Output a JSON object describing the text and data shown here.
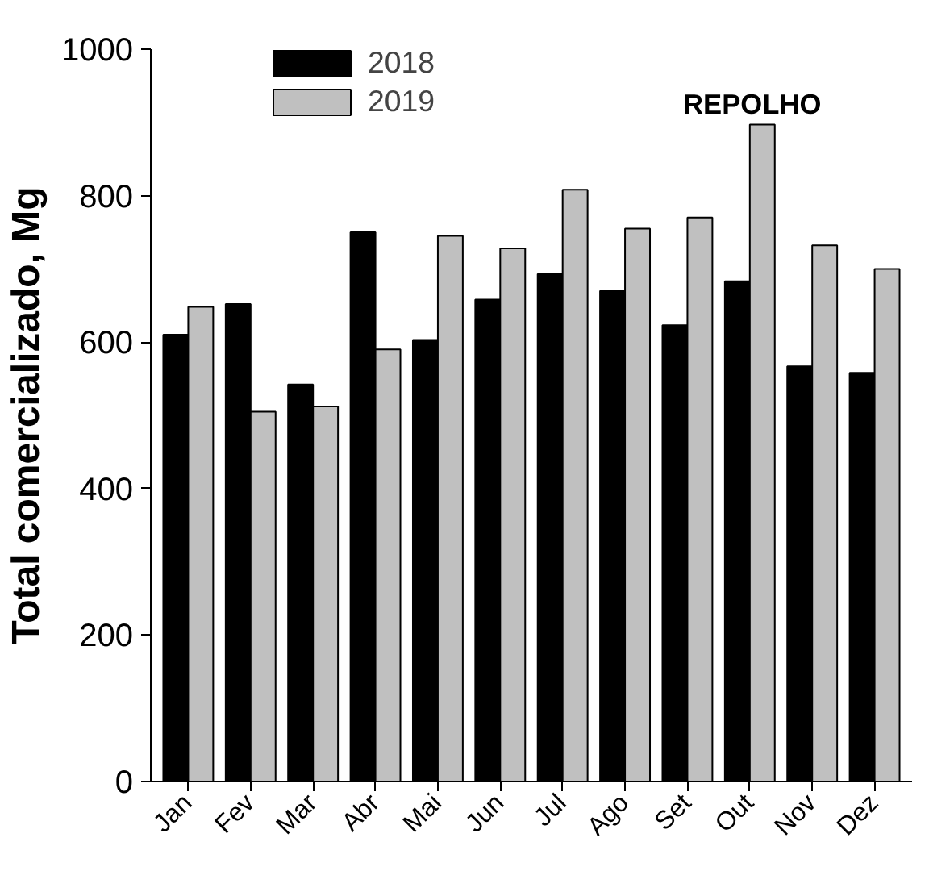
{
  "chart_data": {
    "type": "bar",
    "title": "REPOLHO",
    "ylabel": "Total comercializado, Mg",
    "categories": [
      "Jan",
      "Fev",
      "Mar",
      "Abr",
      "Mai",
      "Jun",
      "Jul",
      "Ago",
      "Set",
      "Out",
      "Nov",
      "Dez"
    ],
    "series": [
      {
        "name": "2018",
        "color": "#000000",
        "values": [
          610,
          652,
          542,
          750,
          603,
          658,
          693,
          670,
          623,
          683,
          567,
          558
        ]
      },
      {
        "name": "2019",
        "color": "#c0c0c0",
        "values": [
          648,
          505,
          512,
          590,
          745,
          728,
          808,
          755,
          770,
          897,
          732,
          700
        ]
      }
    ],
    "ylim": [
      0,
      1000
    ],
    "yticks": [
      0,
      200,
      400,
      600,
      800,
      1000
    ],
    "grid": false,
    "legend": "top left"
  }
}
